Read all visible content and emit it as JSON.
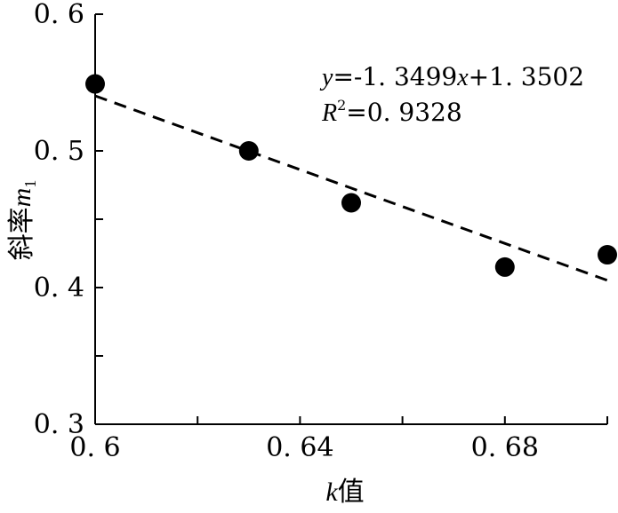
{
  "chart_data": {
    "type": "scatter",
    "title": "",
    "xlabel": {
      "var": "k",
      "text": "值"
    },
    "ylabel": {
      "text": "斜率",
      "var": "m",
      "sub": "1"
    },
    "xlim": [
      0.6,
      0.7
    ],
    "ylim": [
      0.3,
      0.6
    ],
    "x_ticks": [
      0.6,
      0.62,
      0.64,
      0.66,
      0.68,
      0.7
    ],
    "x_tick_labels": [
      {
        "value": 0.6,
        "label": "0. 6"
      },
      {
        "value": 0.64,
        "label": "0. 64"
      },
      {
        "value": 0.68,
        "label": "0. 68"
      }
    ],
    "y_ticks": [
      0.3,
      0.35,
      0.4,
      0.45,
      0.5,
      0.55,
      0.6
    ],
    "y_tick_labels": [
      {
        "value": 0.3,
        "label": "0. 3"
      },
      {
        "value": 0.4,
        "label": "0. 4"
      },
      {
        "value": 0.5,
        "label": "0. 5"
      },
      {
        "value": 0.6,
        "label": "0. 6"
      }
    ],
    "grid": false,
    "series": [
      {
        "points": [
          {
            "x": 0.6,
            "y": 0.549
          },
          {
            "x": 0.63,
            "y": 0.5
          },
          {
            "x": 0.65,
            "y": 0.462
          },
          {
            "x": 0.68,
            "y": 0.415
          },
          {
            "x": 0.7,
            "y": 0.424
          }
        ],
        "color": "#000000"
      }
    ],
    "trendline": {
      "slope": -1.3499,
      "intercept": 1.3502,
      "style": "dashed",
      "color": "#000000"
    },
    "annotation": {
      "equation": {
        "y": "y",
        "eq": "=-1. 3499",
        "x": "x",
        "rest": "+1. 3502"
      },
      "r2": {
        "R": "R",
        "sup": "2",
        "rest": "=0. 9328"
      }
    }
  }
}
